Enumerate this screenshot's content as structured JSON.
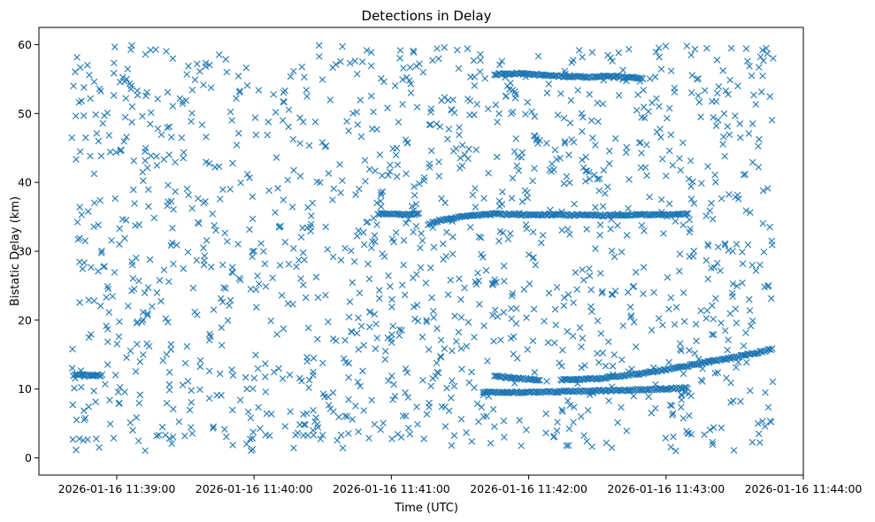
{
  "chart_data": {
    "type": "scatter",
    "title": "Detections in Delay",
    "xlabel": "Time (UTC)",
    "ylabel": "Bistatic Delay (km)",
    "x_unit": "seconds after 2026-01-16 11:38:00 UTC",
    "xlim": [
      26,
      360
    ],
    "ylim": [
      -2.5,
      62.5
    ],
    "x_ticks": [
      60,
      120,
      180,
      240,
      300,
      360
    ],
    "x_tick_labels": [
      "2026-01-16 11:39:00",
      "2026-01-16 11:40:00",
      "2026-01-16 11:41:00",
      "2026-01-16 11:42:00",
      "2026-01-16 11:43:00",
      "2026-01-16 11:44:00"
    ],
    "y_ticks": [
      0,
      10,
      20,
      30,
      40,
      50,
      60
    ],
    "y_tick_labels": [
      "0",
      "10",
      "20",
      "30",
      "40",
      "50",
      "60"
    ],
    "marker": "x",
    "color": "#1f77b4",
    "grid": false,
    "x_range": [
      40,
      347
    ],
    "clutter": {
      "count": 1450,
      "y_range": [
        1,
        60
      ],
      "distribution": "uniform random noise detections"
    },
    "tracks": [
      {
        "name": "track-55km",
        "x": [
          225,
          235,
          245,
          255,
          265,
          275,
          285,
          290
        ],
        "y": [
          55.7,
          55.8,
          55.6,
          55.4,
          55.3,
          55.4,
          55.3,
          55.1
        ]
      },
      {
        "name": "track-35km-a",
        "x": [
          174,
          180,
          186,
          192
        ],
        "y": [
          35.4,
          35.4,
          35.3,
          35.4
        ]
      },
      {
        "name": "track-35km-b",
        "x": [
          196,
          200,
          210,
          220,
          225
        ],
        "y": [
          33.8,
          34.4,
          35.0,
          35.3,
          35.4
        ]
      },
      {
        "name": "track-35km-c",
        "x": [
          225,
          240,
          255,
          270,
          285,
          300,
          310
        ],
        "y": [
          35.4,
          35.3,
          35.3,
          35.2,
          35.3,
          35.3,
          35.4
        ]
      },
      {
        "name": "track-12km-a",
        "x": [
          41,
          54
        ],
        "y": [
          12.0,
          12.0
        ]
      },
      {
        "name": "track-12km-b",
        "x": [
          225,
          245
        ],
        "y": [
          11.9,
          11.3
        ]
      },
      {
        "name": "track-rising",
        "x": [
          254,
          270,
          290,
          310,
          330,
          347
        ],
        "y": [
          11.3,
          11.5,
          12.3,
          13.4,
          14.6,
          15.8
        ]
      },
      {
        "name": "track-10km",
        "x": [
          220,
          240,
          300,
          310
        ],
        "y": [
          9.5,
          9.5,
          10.0,
          10.2
        ]
      }
    ]
  }
}
